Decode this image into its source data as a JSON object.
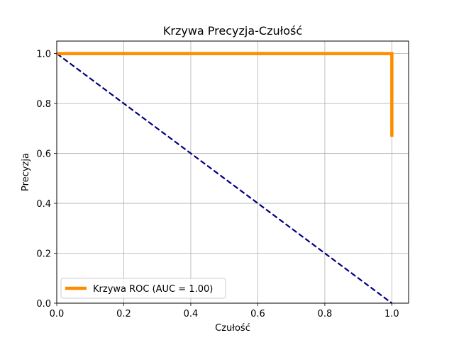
{
  "chart_data": {
    "type": "line",
    "title": "Krzywa Precyzja-Czułość",
    "xlabel": "Czułość",
    "ylabel": "Precyzja",
    "xlim": [
      0.0,
      1.05
    ],
    "ylim": [
      0.0,
      1.05
    ],
    "xticks": [
      0.0,
      0.2,
      0.4,
      0.6,
      0.8,
      1.0
    ],
    "yticks": [
      0.0,
      0.2,
      0.4,
      0.6,
      0.8,
      1.0
    ],
    "xtick_labels": [
      "0.0",
      "0.2",
      "0.4",
      "0.6",
      "0.8",
      "1.0"
    ],
    "ytick_labels": [
      "0.0",
      "0.2",
      "0.4",
      "0.6",
      "0.8",
      "1.0"
    ],
    "grid": true,
    "legend_position": "lower-left",
    "series": [
      {
        "name": "Krzywa ROC (AUC = 1.00)",
        "color": "#ff8c00",
        "style": "solid",
        "x": [
          0.0,
          1.0,
          1.0
        ],
        "y": [
          1.0,
          1.0,
          0.667
        ]
      },
      {
        "color": "#000080",
        "style": "dashed",
        "x": [
          0.0,
          1.0
        ],
        "y": [
          1.0,
          0.0
        ]
      }
    ]
  }
}
